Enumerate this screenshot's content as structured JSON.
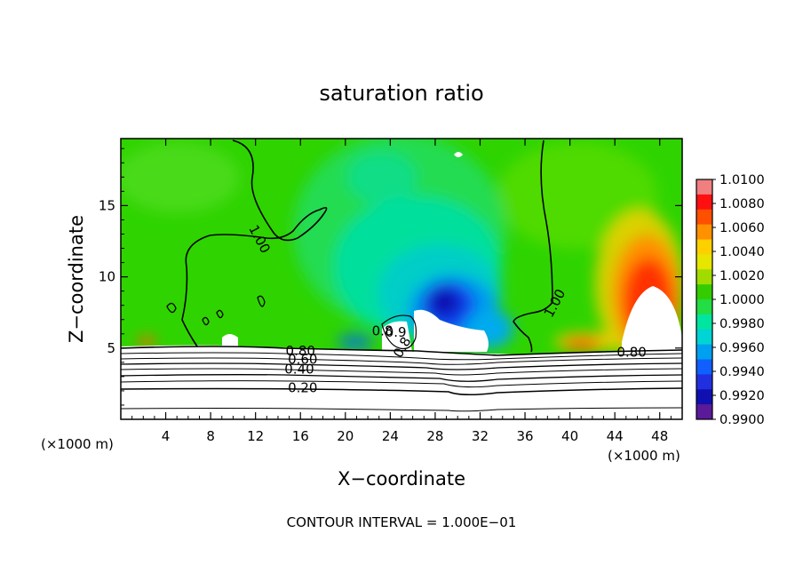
{
  "chart_data": {
    "type": "heatmap",
    "title": "saturation ratio",
    "xlabel": "X−coordinate",
    "ylabel": "Z−coordinate",
    "x_unit_left": "(×1000 m)",
    "x_unit_right": "(×1000 m)",
    "xlim": [
      0,
      50
    ],
    "ylim": [
      0,
      19.7
    ],
    "x_ticks": [
      4,
      8,
      12,
      16,
      20,
      24,
      28,
      32,
      36,
      40,
      44,
      48
    ],
    "y_ticks": [
      5,
      10,
      15
    ],
    "grid": false,
    "footer": "CONTOUR INTERVAL = 1.000E−01",
    "colorbar": {
      "ticks": [
        "1.0100",
        "1.0080",
        "1.0060",
        "1.0040",
        "1.0020",
        "1.0000",
        "0.9980",
        "0.9960",
        "0.9940",
        "0.9920",
        "0.9900"
      ],
      "range": [
        0.99,
        1.01
      ],
      "colors": [
        "#f08080",
        "#ff1010",
        "#ff5000",
        "#ff9000",
        "#ffd000",
        "#e6e600",
        "#a0dc00",
        "#33cc00",
        "#22dd44",
        "#00e6a0",
        "#00d4d4",
        "#00a0f0",
        "#1060ff",
        "#2030e0",
        "#1010b0",
        "#5a1a9a"
      ]
    },
    "contour_labels": [
      {
        "text": "1.00",
        "x": 12.0,
        "z": 12.5,
        "angle": 62
      },
      {
        "text": "1.00",
        "x": 39.0,
        "z": 8.0,
        "angle": -62
      },
      {
        "text": "0.80",
        "x": 16.0,
        "z": 4.5,
        "angle": 0
      },
      {
        "text": "0.60",
        "x": 16.2,
        "z": 3.9,
        "angle": 0
      },
      {
        "text": "0.40",
        "x": 15.9,
        "z": 3.2,
        "angle": 0
      },
      {
        "text": "0.20",
        "x": 16.2,
        "z": 1.9,
        "angle": 0
      },
      {
        "text": "0.80",
        "x": 45.5,
        "z": 4.4,
        "angle": 0
      },
      {
        "text": "0.8",
        "x": 23.3,
        "z": 5.9,
        "angle": 0
      },
      {
        "text": "0.9",
        "x": 24.5,
        "z": 5.8,
        "angle": 0
      },
      {
        "text": "0.8",
        "x": 25.4,
        "z": 4.9,
        "angle": -60
      }
    ]
  }
}
